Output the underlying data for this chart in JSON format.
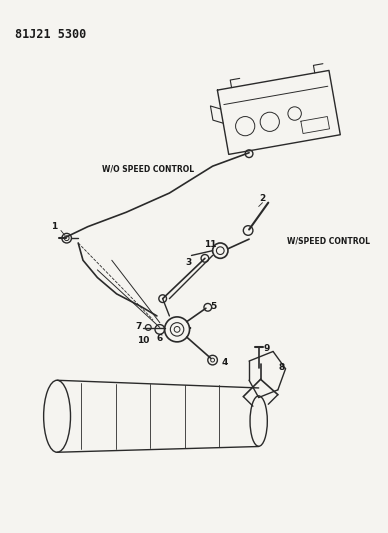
{
  "title": "81J21 5300",
  "background_color": "#f5f4f0",
  "text_color": "#1a1a1a",
  "line_color": "#2a2a2a",
  "labels": {
    "wo_speed": "W/O SPEED CONTROL",
    "w_speed": "W/SPEED CONTROL"
  },
  "figsize": [
    3.88,
    5.33
  ],
  "dpi": 100
}
